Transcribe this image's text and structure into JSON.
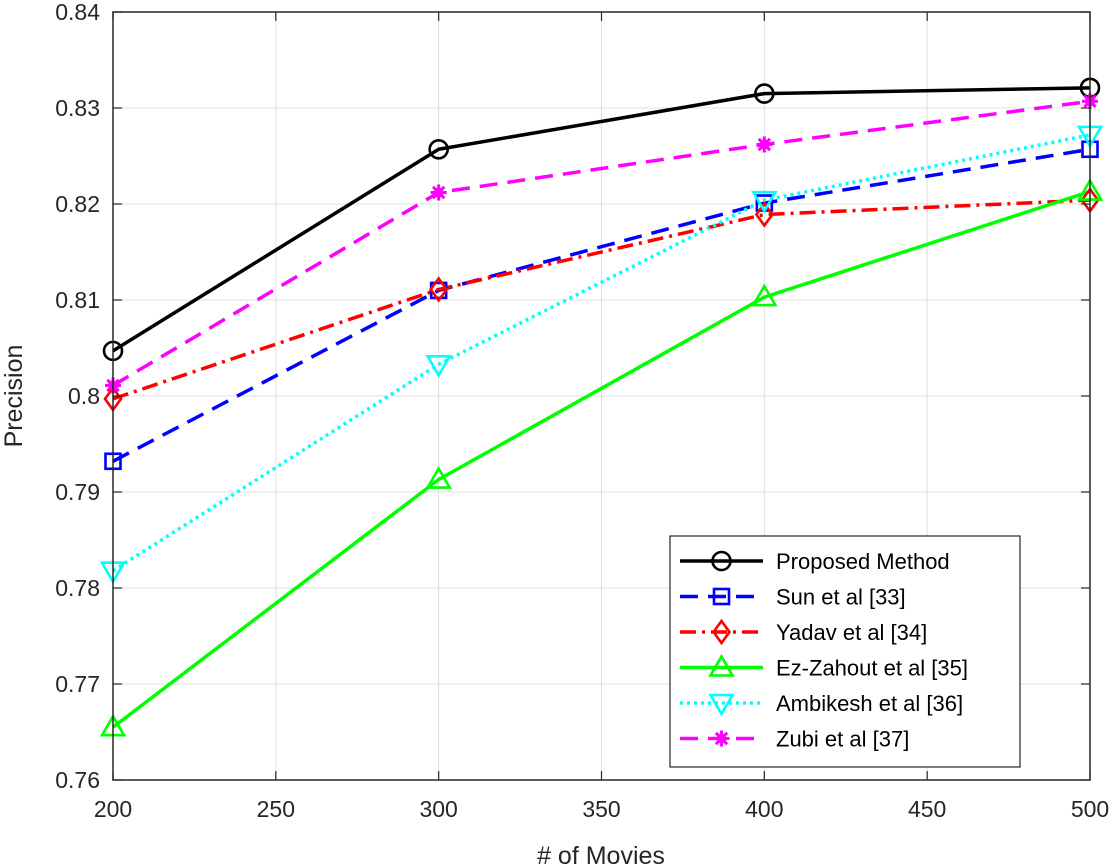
{
  "chart_data": {
    "type": "line",
    "xlabel": "# of Movies",
    "ylabel": "Precision",
    "xlim": [
      200,
      500
    ],
    "ylim": [
      0.76,
      0.84
    ],
    "xticks": [
      "200",
      "250",
      "300",
      "350",
      "400",
      "450",
      "500"
    ],
    "yticks": [
      "0.76",
      "0.77",
      "0.78",
      "0.79",
      "0.8",
      "0.81",
      "0.82",
      "0.83",
      "0.84"
    ],
    "grid": true,
    "legend_position": "bottom-right",
    "x": [
      200,
      300,
      400,
      500
    ],
    "series": [
      {
        "name": "Proposed Method",
        "values": [
          0.8047,
          0.8257,
          0.8315,
          0.8321
        ],
        "color": "#000000",
        "dash": "solid",
        "marker": "circle"
      },
      {
        "name": "Sun et al [33]",
        "values": [
          0.7932,
          0.811,
          0.8201,
          0.8257
        ],
        "color": "#0000ff",
        "dash": "dashed",
        "marker": "square"
      },
      {
        "name": "Yadav et al [34]",
        "values": [
          0.7997,
          0.8111,
          0.8189,
          0.8204
        ],
        "color": "#ff0000",
        "dash": "dashdot",
        "marker": "diamond"
      },
      {
        "name": "Ez-Zahout et al [35]",
        "values": [
          0.7655,
          0.7913,
          0.8103,
          0.8213
        ],
        "color": "#00ff00",
        "dash": "solid",
        "marker": "triangle-up"
      },
      {
        "name": "Ambikesh et al [36]",
        "values": [
          0.7818,
          0.8033,
          0.8204,
          0.8272
        ],
        "color": "#00ffff",
        "dash": "dotted",
        "marker": "triangle-down"
      },
      {
        "name": "Zubi et al [37]",
        "values": [
          0.8011,
          0.8212,
          0.8262,
          0.8307
        ],
        "color": "#ff00ff",
        "dash": "dashed",
        "marker": "asterisk"
      }
    ]
  }
}
